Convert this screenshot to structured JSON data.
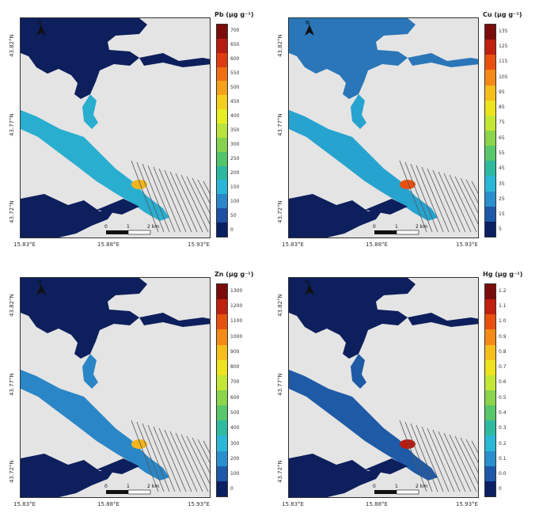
{
  "panels": [
    {
      "id": "pb",
      "legend_title": "Pb (μg g⁻¹)",
      "legend_ticks": [
        "700",
        "650",
        "600",
        "550",
        "500",
        "450",
        "400",
        "350",
        "300",
        "250",
        "200",
        "150",
        "100",
        "50",
        "0"
      ],
      "colors": [
        "#7a0c0c",
        "#b81c10",
        "#e03a12",
        "#f06e14",
        "#f5a21a",
        "#f5cf1e",
        "#e6ee22",
        "#b9e33a",
        "#84d24e",
        "#52c46a",
        "#2bb7a0",
        "#2ab6d6",
        "#2b86c8",
        "#1f4fa2",
        "#0b1f63"
      ],
      "channel_color": "#2aaed0",
      "basin_color": "#0d1f5c",
      "hotspot_color": "#f0b51d",
      "scale_labels": [
        "0",
        "1",
        "2 km"
      ]
    },
    {
      "id": "cu",
      "legend_title": "Cu (μg g⁻¹)",
      "legend_ticks": [
        "135",
        "125",
        "115",
        "105",
        "95",
        "85",
        "75",
        "65",
        "55",
        "45",
        "35",
        "25",
        "15",
        "5"
      ],
      "colors": [
        "#7a0c0c",
        "#c0200f",
        "#e8500f",
        "#f58a16",
        "#f5bf1c",
        "#eee31f",
        "#c4e736",
        "#8cd44c",
        "#58c66a",
        "#2fbaa0",
        "#2bb7d6",
        "#2a8fcc",
        "#1e58a8",
        "#0b1f63"
      ],
      "channel_color": "#27a3cf",
      "basin_color": "#2a76b8",
      "hotspot_color": "#e8500f",
      "scale_labels": [
        "0",
        "1",
        "2 km"
      ]
    },
    {
      "id": "zn",
      "legend_title": "Zn (μg g⁻¹)",
      "legend_ticks": [
        "1300",
        "1200",
        "1100",
        "1000",
        "900",
        "800",
        "700",
        "600",
        "500",
        "400",
        "300",
        "200",
        "100",
        "0"
      ],
      "colors": [
        "#7a0c0c",
        "#c0200f",
        "#e8500f",
        "#f58a16",
        "#f5bf1c",
        "#eee31f",
        "#c4e736",
        "#8cd44c",
        "#58c66a",
        "#2fbaa0",
        "#2bb7d6",
        "#2a8fcc",
        "#1e58a8",
        "#0b1f63"
      ],
      "channel_color": "#2a86c6",
      "basin_color": "#0d1f5c",
      "hotspot_color": "#f0b51d",
      "scale_labels": [
        "0",
        "1",
        "2 km"
      ]
    },
    {
      "id": "hg",
      "legend_title": "Hg (μg g⁻¹)",
      "legend_ticks": [
        "1.2",
        "1.1",
        "1.0",
        "0.9",
        "0.8",
        "0.7",
        "0.6",
        "0.5",
        "0.4",
        "0.3",
        "0.2",
        "0.1",
        "0.0",
        "0"
      ],
      "colors": [
        "#7a0c0c",
        "#c0200f",
        "#e8500f",
        "#f58a16",
        "#f5bf1c",
        "#eee31f",
        "#c4e736",
        "#8cd44c",
        "#58c66a",
        "#2fbaa0",
        "#2bb7d6",
        "#2a8fcc",
        "#1e58a8",
        "#0b1f63"
      ],
      "channel_color": "#1f5aa6",
      "basin_color": "#0d1f5c",
      "hotspot_color": "#b81c10",
      "scale_labels": [
        "0",
        "1",
        "2 km"
      ]
    }
  ],
  "axes": {
    "lat_labels": [
      "43.82°N",
      "43.77°N",
      "43.72°N"
    ],
    "lon_labels": [
      "15.83°E",
      "15.88°E",
      "15.93°E"
    ]
  },
  "north_label": "N"
}
